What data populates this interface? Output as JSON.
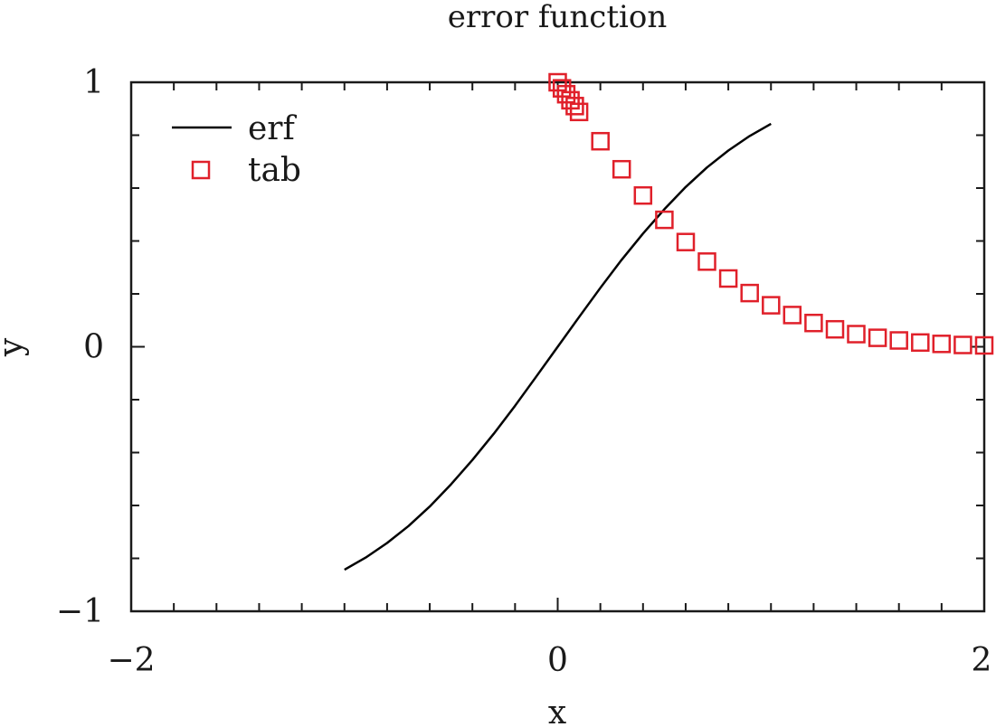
{
  "chart_data": {
    "type": "line",
    "title": "error function",
    "xlabel": "x",
    "ylabel": "y",
    "xlim": [
      -2,
      2
    ],
    "ylim": [
      -1,
      1
    ],
    "xticks": [
      -2,
      0,
      2
    ],
    "xtick_labels": [
      "−2",
      "0",
      "2"
    ],
    "yticks": [
      -1,
      0,
      1
    ],
    "ytick_labels": [
      "−1",
      "0",
      "1"
    ],
    "x_minor_step": 0.2,
    "y_minor_step": 0.2,
    "legend_position": "top-left",
    "series": [
      {
        "name": "erf",
        "style": "line",
        "color": "#000000",
        "points": [
          [
            -1.0,
            -0.843
          ],
          [
            -0.9,
            -0.797
          ],
          [
            -0.8,
            -0.742
          ],
          [
            -0.7,
            -0.678
          ],
          [
            -0.6,
            -0.604
          ],
          [
            -0.5,
            -0.52
          ],
          [
            -0.4,
            -0.428
          ],
          [
            -0.3,
            -0.329
          ],
          [
            -0.2,
            -0.223
          ],
          [
            -0.1,
            -0.112
          ],
          [
            0.0,
            0.0
          ],
          [
            0.1,
            0.112
          ],
          [
            0.2,
            0.223
          ],
          [
            0.3,
            0.329
          ],
          [
            0.4,
            0.428
          ],
          [
            0.5,
            0.52
          ],
          [
            0.6,
            0.604
          ],
          [
            0.7,
            0.678
          ],
          [
            0.8,
            0.742
          ],
          [
            0.9,
            0.797
          ],
          [
            1.0,
            0.843
          ]
        ]
      },
      {
        "name": "tab",
        "style": "markers",
        "marker": "square",
        "color": "#e0202a",
        "points": [
          [
            0.0,
            1.0
          ],
          [
            0.02,
            0.977
          ],
          [
            0.04,
            0.955
          ],
          [
            0.06,
            0.932
          ],
          [
            0.08,
            0.91
          ],
          [
            0.1,
            0.888
          ],
          [
            0.2,
            0.777
          ],
          [
            0.3,
            0.671
          ],
          [
            0.4,
            0.572
          ],
          [
            0.5,
            0.48
          ],
          [
            0.6,
            0.396
          ],
          [
            0.7,
            0.322
          ],
          [
            0.8,
            0.258
          ],
          [
            0.9,
            0.203
          ],
          [
            1.0,
            0.157
          ],
          [
            1.1,
            0.12
          ],
          [
            1.2,
            0.09
          ],
          [
            1.3,
            0.066
          ],
          [
            1.4,
            0.048
          ],
          [
            1.5,
            0.034
          ],
          [
            1.6,
            0.024
          ],
          [
            1.7,
            0.016
          ],
          [
            1.8,
            0.011
          ],
          [
            1.9,
            0.007
          ],
          [
            2.0,
            0.005
          ]
        ]
      }
    ]
  }
}
